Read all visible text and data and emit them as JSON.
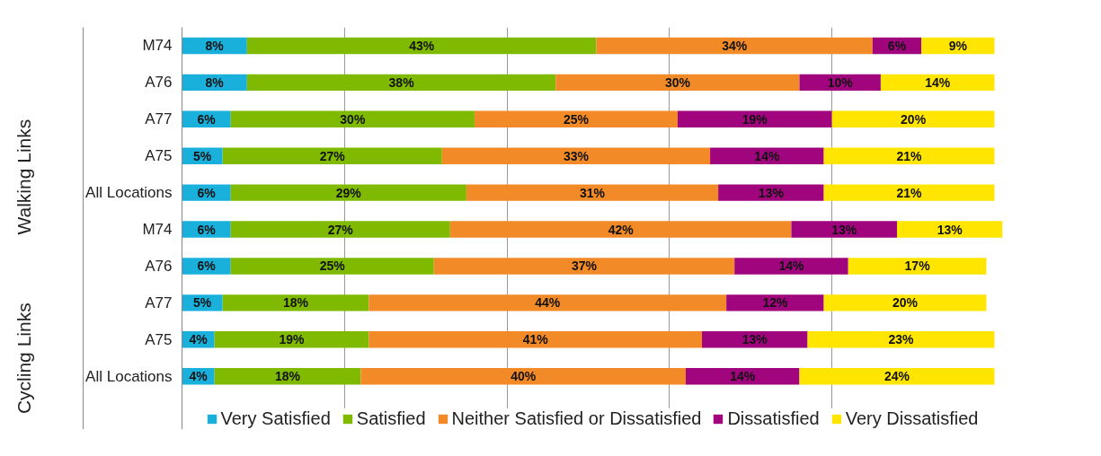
{
  "chart_data": {
    "type": "bar",
    "orientation": "horizontal",
    "stacked": true,
    "categories": [
      "M74",
      "A76",
      "A77",
      "A75",
      "All Locations",
      "M74",
      "A76",
      "A77",
      "A75",
      "All Locations"
    ],
    "series": [
      {
        "name": "Very Satisfied",
        "color": "#1ab0dc",
        "values": [
          8,
          8,
          6,
          5,
          6,
          6,
          6,
          5,
          4,
          4
        ],
        "value_labels": [
          "8%",
          "8%",
          "6%",
          "5%",
          "6%",
          "6%",
          "6%",
          "5%",
          "4%",
          "4%"
        ]
      },
      {
        "name": "Satisfied",
        "color": "#7fba00",
        "values": [
          43,
          38,
          30,
          27,
          29,
          27,
          25,
          18,
          19,
          18
        ],
        "value_labels": [
          "43%",
          "38%",
          "30%",
          "27%",
          "29%",
          "27%",
          "25%",
          "18%",
          "19%",
          "18%"
        ]
      },
      {
        "name": "Neither Satisfied or Dissatisfied",
        "color": "#f28b27",
        "values": [
          34,
          30,
          25,
          33,
          31,
          42,
          37,
          44,
          41,
          40
        ],
        "value_labels": [
          "34%",
          "30%",
          "25%",
          "33%",
          "31%",
          "42%",
          "37%",
          "44%",
          "41%",
          "40%"
        ]
      },
      {
        "name": "Dissatisfied",
        "color": "#a0057e",
        "values": [
          6,
          10,
          19,
          14,
          13,
          13,
          14,
          12,
          13,
          14
        ],
        "value_labels": [
          "6%",
          "10%",
          "19%",
          "14%",
          "13%",
          "13%",
          "14%",
          "12%",
          "13%",
          "14%"
        ]
      },
      {
        "name": "Very Dissatisfied",
        "color": "#ffe500",
        "values": [
          9,
          14,
          20,
          21,
          21,
          13,
          17,
          20,
          23,
          24
        ],
        "value_labels": [
          "9%",
          "14%",
          "20%",
          "21%",
          "21%",
          "13%",
          "17%",
          "20%",
          "23%",
          "24%"
        ]
      }
    ],
    "annotations": [
      "Walking Links",
      "Cycling Links"
    ],
    "xlim": [
      0,
      101
    ],
    "xticks": [
      {
        "value": 20,
        "label": null
      },
      {
        "value": 40,
        "label": null
      },
      {
        "value": 60,
        "label": null
      },
      {
        "value": 80,
        "label": null
      }
    ],
    "tick_labels": "y",
    "grid": "x",
    "legend": "bottom"
  }
}
